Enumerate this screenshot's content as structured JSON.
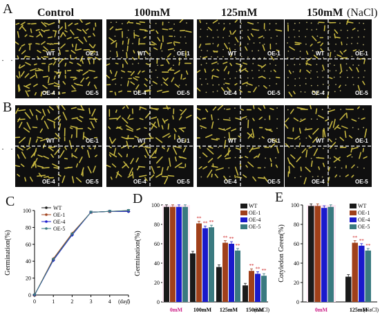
{
  "panels": {
    "A": "A",
    "B": "B",
    "C": "C",
    "D": "D",
    "E": "E"
  },
  "conditions": {
    "c1": "Control",
    "c2": "100mM",
    "c3": "125mM",
    "c4": "150mM",
    "unit": "(NaCl)"
  },
  "row_markers": "· ·",
  "quadrant_labels": {
    "tl": "WT",
    "tr": "OE-1",
    "bl": "OE-4",
    "br": "OE-5"
  },
  "colors": {
    "WT": "#1a1a1a",
    "OE-1": "#a0401a",
    "OE-4": "#1a1acc",
    "OE-5": "#3a7a80",
    "sig": "#cc1a1a",
    "photo_bg": "#0f0f0f",
    "seedling": "#c8b840"
  },
  "chart_data": [
    {
      "type": "line",
      "panel": "C",
      "xlabel": "(day)",
      "ylabel": "Germination(%)",
      "x": [
        0,
        1,
        2,
        3,
        4,
        5
      ],
      "ylim": [
        0,
        100
      ],
      "yticks": [
        0,
        20,
        40,
        60,
        80,
        100
      ],
      "legend": "top-left",
      "series": [
        {
          "name": "WT",
          "values": [
            0,
            42,
            72,
            98,
            99,
            99
          ],
          "marker": "circle"
        },
        {
          "name": "OE-1",
          "values": [
            0,
            43,
            73,
            98,
            99,
            100
          ],
          "marker": "triangle"
        },
        {
          "name": "OE-4",
          "values": [
            0,
            41,
            71,
            98,
            99,
            99
          ],
          "marker": "diamond"
        },
        {
          "name": "OE-5",
          "values": [
            0,
            42,
            72,
            98,
            99,
            100
          ],
          "marker": "triangle-down"
        }
      ]
    },
    {
      "type": "bar",
      "panel": "D",
      "ylabel": "Germination(%)",
      "unit": "(NaCl)",
      "categories": [
        "0mM",
        "100mM",
        "125mM",
        "150mM"
      ],
      "ylim": [
        0,
        100
      ],
      "yticks": [
        0,
        20,
        40,
        60,
        80,
        100
      ],
      "legend": "top-right",
      "series": [
        {
          "name": "WT",
          "values": [
            98,
            50,
            36,
            17
          ],
          "sig": [
            "",
            "",
            "",
            ""
          ]
        },
        {
          "name": "OE-1",
          "values": [
            98,
            81,
            61,
            32
          ],
          "sig": [
            "",
            "**",
            "**",
            "**"
          ]
        },
        {
          "name": "OE-4",
          "values": [
            98,
            76,
            60,
            29
          ],
          "sig": [
            "",
            "**",
            "**",
            "**"
          ]
        },
        {
          "name": "OE-5",
          "values": [
            98,
            77,
            53,
            27
          ],
          "sig": [
            "",
            "**",
            "**",
            "**"
          ]
        }
      ]
    },
    {
      "type": "bar",
      "panel": "E",
      "ylabel": "Cotyledon Green(%)",
      "unit": "(NaCl)",
      "categories": [
        "0mM",
        "125mM"
      ],
      "ylim": [
        0,
        100
      ],
      "yticks": [
        0,
        20,
        40,
        60,
        80,
        100
      ],
      "legend": "top-right",
      "series": [
        {
          "name": "WT",
          "values": [
            99,
            26
          ],
          "sig": [
            "",
            ""
          ]
        },
        {
          "name": "OE-1",
          "values": [
            99,
            61
          ],
          "sig": [
            "",
            "**"
          ]
        },
        {
          "name": "OE-4",
          "values": [
            97,
            58
          ],
          "sig": [
            "",
            "**"
          ]
        },
        {
          "name": "OE-5",
          "values": [
            98,
            53
          ],
          "sig": [
            "",
            "**"
          ]
        }
      ]
    }
  ]
}
